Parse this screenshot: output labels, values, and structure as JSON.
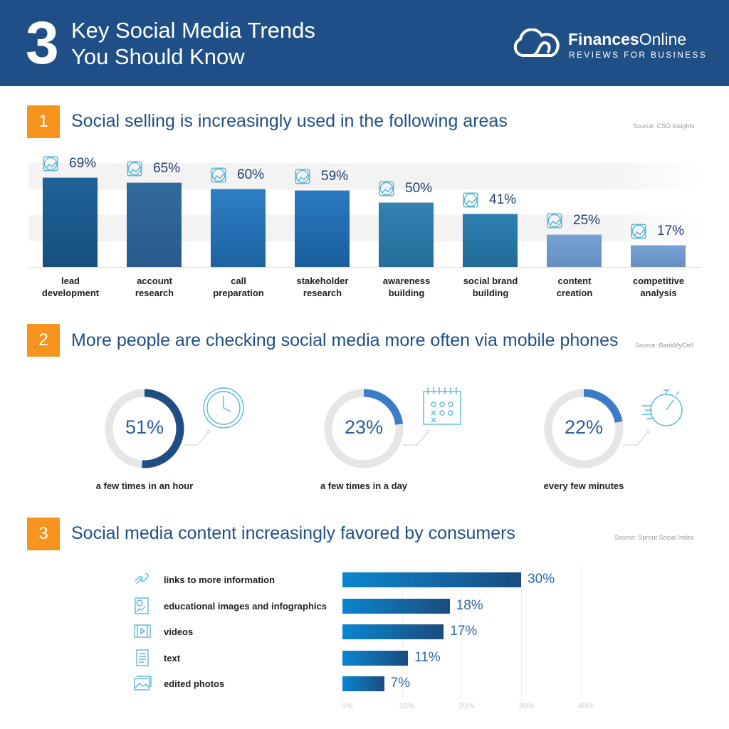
{
  "header": {
    "number": "3",
    "title_line1": "Key Social Media Trends",
    "title_line2": "You Should Know",
    "logo_bold": "Finances",
    "logo_light": "Online",
    "logo_tagline": "REVIEWS FOR BUSINESS"
  },
  "colors": {
    "header": "#1f4f86",
    "accent": "#f7941d",
    "ring": "#e6e6e6",
    "ring_dark": "#1f4e85",
    "ring_light": "#3a7cc8"
  },
  "sections": [
    {
      "number": "1",
      "title": "Social selling is increasingly used in the following areas",
      "source": "Source: CSO Insights"
    },
    {
      "number": "2",
      "title": "More people are checking social media more often via mobile phones",
      "source": "Source: BankMyCell"
    },
    {
      "number": "3",
      "title": "Social media content increasingly favored by consumers",
      "source": "Source: Sprout Social Index"
    }
  ],
  "chart_data": [
    {
      "type": "bar",
      "categories": [
        "lead development",
        "account research",
        "call preparation",
        "stakeholder research",
        "awareness building",
        "social brand building",
        "content creation",
        "competitive analysis"
      ],
      "values": [
        69,
        65,
        60,
        59,
        50,
        41,
        25,
        17
      ],
      "labels": [
        "69%",
        "65%",
        "60%",
        "59%",
        "50%",
        "41%",
        "25%",
        "17%"
      ],
      "icons": [
        "network-people-icon",
        "profile-shield-icon",
        "headset-agent-icon",
        "magnifier-person-icon",
        "audience-icon",
        "thumbs-up-icon",
        "pencil-lines-icon",
        "podium-icon"
      ],
      "bar_colors": [
        [
          "#1f6297",
          "#17507f"
        ],
        [
          "#336b9f",
          "#295a8c"
        ],
        [
          "#2e7fc6",
          "#1d62a0"
        ],
        [
          "#2a7ac0",
          "#1a5e9c"
        ],
        [
          "#3482b3",
          "#256d98"
        ],
        [
          "#2e80b1",
          "#216a95"
        ],
        [
          "#74a2d3",
          "#6790c1"
        ],
        [
          "#74a2d3",
          "#6790c1"
        ]
      ],
      "ylim": [
        0,
        100
      ]
    },
    {
      "type": "pie",
      "style": "donut",
      "values": [
        51,
        23,
        22
      ],
      "labels": [
        "51%",
        "23%",
        "22%"
      ],
      "categories": [
        "a few times in an hour",
        "a few times in a day",
        "every few minutes"
      ],
      "icons": [
        "clock-icon",
        "calendar-icon",
        "stopwatch-icon"
      ]
    },
    {
      "type": "bar",
      "orientation": "horizontal",
      "categories": [
        "links to more information",
        "educational images and infographics",
        "videos",
        "text",
        "edited photos"
      ],
      "values": [
        30,
        18,
        17,
        11,
        7
      ],
      "labels": [
        "30%",
        "18%",
        "17%",
        "11%",
        "7%"
      ],
      "icons": [
        "link-icon",
        "infographic-icon",
        "video-icon",
        "text-document-icon",
        "photo-icon"
      ],
      "xlim": [
        0,
        40
      ],
      "ticks": [
        "0%",
        "10%",
        "20%",
        "30%",
        "40%"
      ],
      "grid": true
    }
  ]
}
